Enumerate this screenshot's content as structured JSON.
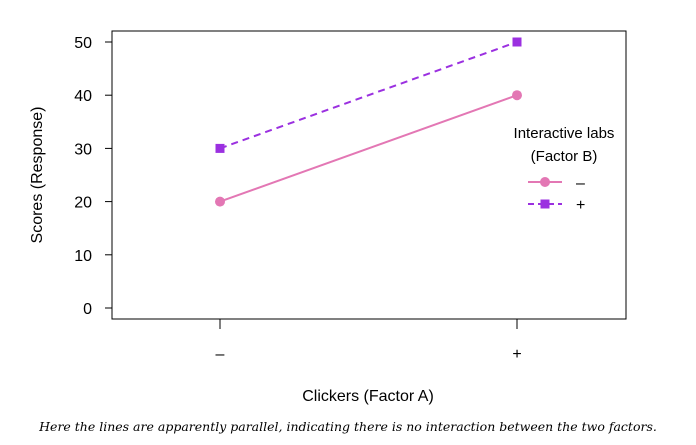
{
  "chart_data": {
    "type": "line",
    "xlabel": "Clickers (Factor A)",
    "ylabel": "Scores (Response)",
    "categories": [
      "–",
      "+"
    ],
    "ylim": [
      0,
      50
    ],
    "yticks": [
      0,
      10,
      20,
      30,
      40,
      50
    ],
    "grid": false,
    "legend": {
      "title_line1": "Interactive labs",
      "title_line2": "(Factor B)",
      "placement": "right"
    },
    "series": [
      {
        "name": "–",
        "values": [
          20,
          40
        ],
        "color": "#e377b4",
        "line": "solid",
        "marker": "circle"
      },
      {
        "name": "+",
        "values": [
          30,
          50
        ],
        "color": "#9b30e0",
        "line": "dashed",
        "marker": "square"
      }
    ]
  },
  "caption": "Here the lines are apparently parallel, indicating there is no interaction between the two factors."
}
